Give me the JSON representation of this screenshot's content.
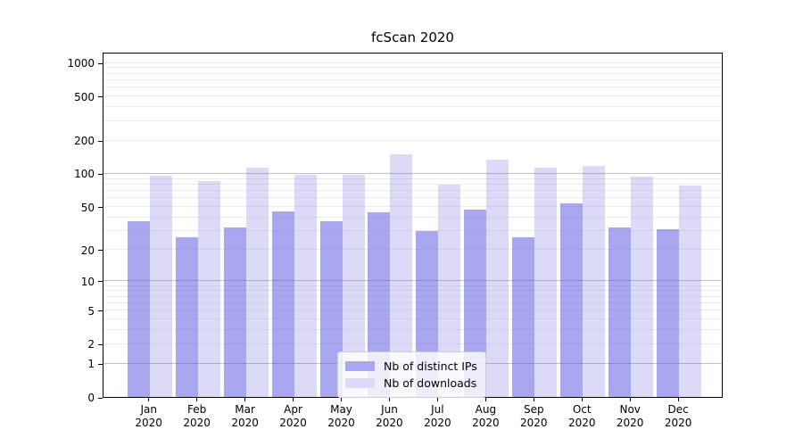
{
  "title": "fcScan 2020",
  "colors": {
    "bar_base": "#5656e0",
    "ips_fill": "rgba(86,86,224,0.52)",
    "downloads_fill": "rgba(86,86,224,0.21)",
    "ips_swatch": "#a7a7f1",
    "downloads_swatch": "#dbdbf9",
    "major_grid": "#c2c2c2",
    "minor_grid": "#ececec",
    "spine": "#000000",
    "background": "#ffffff"
  },
  "legend": {
    "items": [
      {
        "label": "Nb of distinct IPs",
        "swatch": "ips_swatch"
      },
      {
        "label": "Nb of downloads",
        "swatch": "downloads_swatch"
      }
    ]
  },
  "chart_data": {
    "type": "bar",
    "title": "fcScan 2020",
    "categories": [
      "Jan 2020",
      "Feb 2020",
      "Mar 2020",
      "Apr 2020",
      "May 2020",
      "Jun 2020",
      "Jul 2020",
      "Aug 2020",
      "Sep 2020",
      "Oct 2020",
      "Nov 2020",
      "Dec 2020"
    ],
    "series": [
      {
        "name": "Nb of distinct IPs",
        "values": [
          37,
          26,
          32,
          45,
          37,
          44,
          30,
          47,
          26,
          54,
          32,
          31
        ]
      },
      {
        "name": "Nb of downloads",
        "values": [
          95,
          85,
          113,
          98,
          98,
          149,
          79,
          134,
          114,
          118,
          93,
          78
        ]
      }
    ],
    "xlabel": "",
    "ylabel": "",
    "yscale": "log(v+1)",
    "ylim": [
      0,
      1270
    ],
    "yticks": [
      1000,
      500,
      200,
      100,
      50,
      20,
      10,
      5,
      2,
      1,
      0
    ],
    "minor_grid_values": [
      2,
      3,
      4,
      5,
      6,
      7,
      8,
      9,
      20,
      30,
      40,
      50,
      60,
      70,
      80,
      90,
      200,
      300,
      400,
      500,
      600,
      700,
      800,
      900,
      1000
    ],
    "major_grid_values": [
      1,
      10,
      100
    ],
    "grid": true,
    "legend_position": "lower center"
  }
}
